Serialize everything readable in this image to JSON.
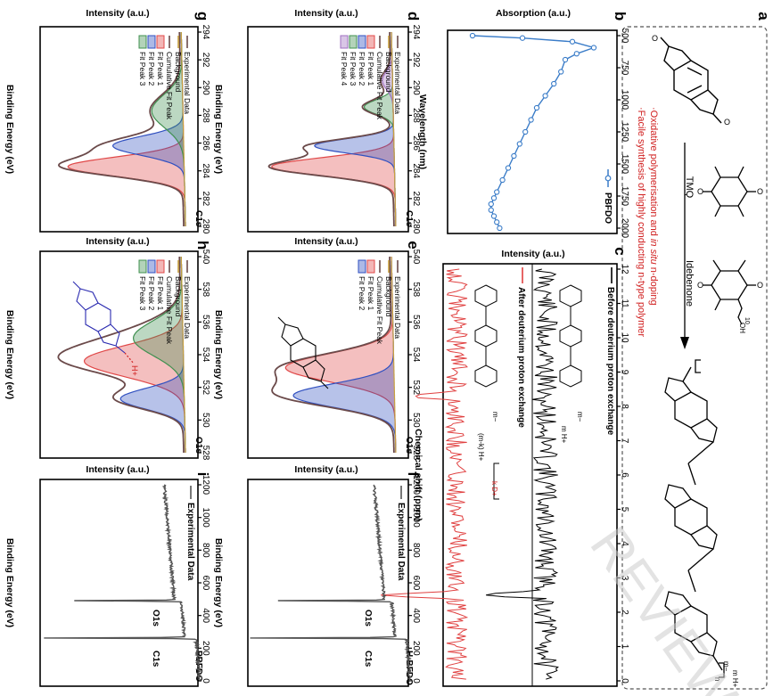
{
  "panels": {
    "a": {
      "letter": "a",
      "start_molecule": "PBFDO monomer (bis-furanone)",
      "reagents": [
        "TMQ",
        "Idebenone"
      ],
      "notes": [
        "·Oxidative polymerisation and ",
        "in situ",
        " n-doping",
        "·Facile synthesis of highly conducting n-type polymer"
      ],
      "product_labels": [
        "m−",
        "m H+",
        "n"
      ],
      "idebenone_sub": "10",
      "idebenone_oh": "OH"
    },
    "b": {
      "letter": "b",
      "ylabel": "Absorption (a.u.)",
      "xlabel": "Wavelength (nm)",
      "legend": "PBFDO",
      "ticks": [
        "500",
        "750",
        "1000",
        "1250",
        "1500",
        "1750",
        "2000"
      ]
    },
    "c": {
      "letter": "c",
      "ylabel": "Intensity (a.u.)",
      "xlabel": "Chemical shift (ppm)",
      "legend_before": "Before deuterium proton exchange",
      "legend_after": "After deuterium proton exchange",
      "ticks": [
        "12",
        "11",
        "10",
        "9",
        "8",
        "7",
        "6",
        "5",
        "4",
        "3",
        "2",
        "1",
        "0"
      ],
      "labels_before": [
        "m−",
        "m H+"
      ],
      "labels_after": [
        "m−",
        "(m-k) H+",
        "k D+"
      ]
    },
    "d": {
      "letter": "d",
      "ylabel": "Intensity (a.u.)",
      "xlabel": "Binding Energy (eV)",
      "tag": "C1s",
      "legend": [
        "Experimental Data",
        "Background",
        "Cumulative Fit Peak",
        "Fit Peak 1",
        "Fit Peak 2",
        "Fit Peak 3",
        "Fit Peak 4"
      ],
      "ticks": [
        "294",
        "292",
        "290",
        "288",
        "286",
        "284",
        "282",
        "280"
      ]
    },
    "e": {
      "letter": "e",
      "ylabel": "Intensity (a.u.)",
      "xlabel": "Binding Energy (eV)",
      "tag": "O1s",
      "legend": [
        "Experimental Data",
        "Background",
        "Cumulative Fit Peak",
        "Fit Peak 1",
        "Fit Peak 2"
      ],
      "ticks": [
        "540",
        "538",
        "536",
        "534",
        "532",
        "530",
        "528"
      ]
    },
    "f": {
      "letter": "f",
      "ylabel": "Intensity (a.u.)",
      "xlabel": "Binding Energy (eV)",
      "legend": "Experimental Data",
      "sample": "H-BFDO",
      "peaks": [
        "O1s",
        "C1s"
      ],
      "ticks": [
        "1200",
        "1000",
        "800",
        "600",
        "400",
        "200",
        "0"
      ]
    },
    "g": {
      "letter": "g",
      "ylabel": "Intensity (a.u.)",
      "xlabel": "Binding Energy (eV)",
      "tag": "C1s",
      "legend": [
        "Experimental Data",
        "Background",
        "Cumulative Fit Peak",
        "Fit Peak 1",
        "Fit Peak 2",
        "Fit Peak 3"
      ],
      "ticks": [
        "294",
        "292",
        "290",
        "288",
        "286",
        "284",
        "282",
        "280"
      ]
    },
    "h": {
      "letter": "h",
      "ylabel": "Intensity (a.u.)",
      "xlabel": "Binding Energy (eV)",
      "tag": "O1s",
      "legend": [
        "Experimental Data",
        "Background",
        "Cumulative Fit Peak",
        "Fit Peak 1",
        "Fit Peak 2",
        "Fit Peak 3"
      ],
      "ticks": [
        "540",
        "538",
        "536",
        "534",
        "532",
        "530",
        "528"
      ],
      "hbond": "H+"
    },
    "i": {
      "letter": "i",
      "ylabel": "Intensity (a.u.)",
      "xlabel": "Binding Energy (eV)",
      "legend": "Experimental Data",
      "sample": "PBFDO",
      "peaks": [
        "O1s",
        "C1s"
      ],
      "ticks": [
        "1200",
        "1000",
        "800",
        "600",
        "400",
        "200",
        "0"
      ]
    }
  },
  "watermark": "REVIEW",
  "colors": {
    "experimental": "#6b4a4a",
    "background": "#c8a040",
    "peak_red": "#e04848",
    "peak_blue": "#3050c0",
    "peak_green": "#409050",
    "peak_purple": "#a070c0",
    "nmr_before": "#000000",
    "nmr_after": "#e04040",
    "absorption": "#3a7cc8",
    "reagent_red": "#d02020"
  },
  "chart_data": [
    {
      "id": "b",
      "type": "line",
      "title": "",
      "xlabel": "Wavelength (nm)",
      "ylabel": "Absorption (a.u.)",
      "xlim": [
        400,
        2000
      ],
      "series": [
        {
          "name": "PBFDO",
          "x": [
            400,
            420,
            450,
            500,
            550,
            600,
            700,
            800,
            900,
            1000,
            1100,
            1200,
            1300,
            1400,
            1500,
            1600,
            1700,
            1750,
            1800,
            1850,
            1900,
            1950,
            2000
          ],
          "y": [
            0.95,
            0.6,
            0.25,
            0.1,
            0.22,
            0.3,
            0.33,
            0.38,
            0.44,
            0.5,
            0.54,
            0.58,
            0.62,
            0.66,
            0.7,
            0.74,
            0.78,
            0.8,
            0.82,
            0.82,
            0.8,
            0.78,
            0.76
          ]
        }
      ]
    },
    {
      "id": "c",
      "type": "line",
      "xlabel": "Chemical shift (ppm)",
      "ylabel": "Intensity (a.u.)",
      "xlim": [
        12,
        0
      ],
      "series": [
        {
          "name": "Before deuterium proton exchange",
          "peaks_ppm": [
            2.5,
            8.3
          ],
          "peak_heights": [
            1.0,
            0.15
          ]
        },
        {
          "name": "After deuterium proton exchange",
          "peaks_ppm": [
            2.5,
            8.3
          ],
          "peak_heights": [
            1.0,
            0.7
          ]
        }
      ]
    },
    {
      "id": "d",
      "type": "area",
      "xlabel": "Binding Energy (eV)",
      "xlim": [
        294,
        280
      ],
      "tag": "C1s",
      "series": [
        {
          "name": "Fit Peak 1",
          "center": 284.3,
          "fwhm": 1.5,
          "height": 0.85
        },
        {
          "name": "Fit Peak 2",
          "center": 285.8,
          "fwhm": 1.2,
          "height": 0.55
        },
        {
          "name": "Fit Peak 3",
          "center": 288.6,
          "fwhm": 1.2,
          "height": 0.2
        },
        {
          "name": "Fit Peak 4",
          "center": 290.5,
          "fwhm": 1.5,
          "height": 0.07
        }
      ]
    },
    {
      "id": "e",
      "type": "area",
      "xlabel": "Binding Energy (eV)",
      "xlim": [
        540,
        528
      ],
      "tag": "O1s",
      "series": [
        {
          "name": "Fit Peak 1",
          "center": 533.2,
          "fwhm": 2.0,
          "height": 0.75
        },
        {
          "name": "Fit Peak 2",
          "center": 531.5,
          "fwhm": 1.7,
          "height": 0.7
        }
      ]
    },
    {
      "id": "f",
      "type": "line",
      "xlabel": "Binding Energy (eV)",
      "xlim": [
        1300,
        0
      ],
      "sample": "H-BFDO",
      "series": [
        {
          "name": "Experimental Data",
          "peaks_eV": [
            531,
            284
          ],
          "peak_heights": [
            0.82,
            1.0
          ]
        }
      ]
    },
    {
      "id": "g",
      "type": "area",
      "xlabel": "Binding Energy (eV)",
      "xlim": [
        294,
        280
      ],
      "tag": "C1s",
      "series": [
        {
          "name": "Fit Peak 1",
          "center": 284.3,
          "fwhm": 1.6,
          "height": 0.82
        },
        {
          "name": "Fit Peak 2",
          "center": 285.8,
          "fwhm": 1.6,
          "height": 0.5
        },
        {
          "name": "Fit Peak 3",
          "center": 288.3,
          "fwhm": 2.8,
          "height": 0.22
        }
      ]
    },
    {
      "id": "h",
      "type": "area",
      "xlabel": "Binding Energy (eV)",
      "xlim": [
        540,
        528
      ],
      "tag": "O1s",
      "series": [
        {
          "name": "Fit Peak 1",
          "center": 533.6,
          "fwhm": 2.2,
          "height": 0.7
        },
        {
          "name": "Fit Peak 2",
          "center": 531.3,
          "fwhm": 1.5,
          "height": 0.45
        },
        {
          "name": "Fit Peak 3",
          "center": 535.0,
          "fwhm": 2.5,
          "height": 0.35
        }
      ]
    },
    {
      "id": "i",
      "type": "line",
      "xlabel": "Binding Energy (eV)",
      "xlim": [
        1300,
        0
      ],
      "sample": "PBFDO",
      "series": [
        {
          "name": "Experimental Data",
          "peaks_eV": [
            531,
            284
          ],
          "peak_heights": [
            0.78,
            1.0
          ]
        }
      ]
    }
  ]
}
